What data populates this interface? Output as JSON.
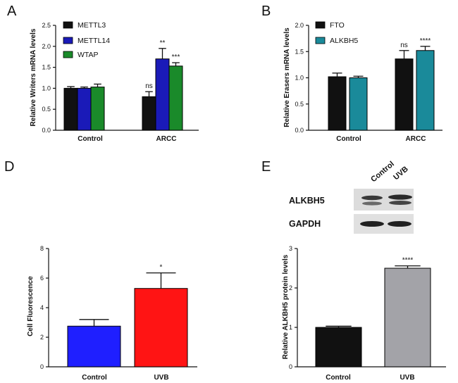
{
  "panels": [
    {
      "id": "A",
      "label": "A",
      "chart_data": {
        "type": "bar",
        "title": "",
        "xlabel": "",
        "ylabel": "Relative Writers mRNA levels",
        "ylim": [
          0,
          2.5
        ],
        "yticks": [
          "0.0",
          "0.5",
          "1.0",
          "1.5",
          "2.0",
          "2.5"
        ],
        "categories": [
          "Control",
          "ARCC"
        ],
        "series": [
          {
            "name": "METTL3",
            "color": "#111111",
            "values": [
              1.0,
              0.8
            ],
            "errors": [
              0.04,
              0.12
            ]
          },
          {
            "name": "METTL14",
            "color": "#1a1ab8",
            "values": [
              1.0,
              1.7
            ],
            "errors": [
              0.03,
              0.25
            ]
          },
          {
            "name": "WTAP",
            "color": "#1a8a2a",
            "values": [
              1.03,
              1.53
            ],
            "errors": [
              0.07,
              0.08
            ]
          }
        ],
        "annotations": [
          [
            "",
            "",
            ""
          ],
          [
            "ns",
            "**",
            "***"
          ]
        ],
        "legend": "top-left",
        "grid": false
      }
    },
    {
      "id": "B",
      "label": "B",
      "chart_data": {
        "type": "bar",
        "title": "",
        "xlabel": "",
        "ylabel": "Relative Erasers mRNA levels",
        "ylim": [
          0,
          2.0
        ],
        "yticks": [
          "0.0",
          "0.5",
          "1.0",
          "1.5",
          "2.0"
        ],
        "categories": [
          "Control",
          "ARCC"
        ],
        "series": [
          {
            "name": "FTO",
            "color": "#111111",
            "values": [
              1.02,
              1.36
            ],
            "errors": [
              0.07,
              0.16
            ]
          },
          {
            "name": "ALKBH5",
            "color": "#1a8a9a",
            "values": [
              1.0,
              1.52
            ],
            "errors": [
              0.03,
              0.08
            ]
          }
        ],
        "annotations": [
          [
            "",
            ""
          ],
          [
            "ns",
            "****"
          ]
        ],
        "legend": "top-left",
        "grid": false
      }
    },
    {
      "id": "D",
      "label": "D",
      "chart_data": {
        "type": "bar",
        "title": "",
        "xlabel": "",
        "ylabel": "Cell Fluorescence",
        "ylim": [
          0,
          8
        ],
        "yticks": [
          "0",
          "2",
          "4",
          "6",
          "8"
        ],
        "categories": [
          "Control",
          "UVB"
        ],
        "values": [
          2.75,
          5.3
        ],
        "errors": [
          0.45,
          1.05
        ],
        "colors": [
          "#1f1fff",
          "#ff1414"
        ],
        "annotations": [
          "",
          "*"
        ],
        "grid": false
      }
    },
    {
      "id": "E",
      "label": "E",
      "chart_data": {
        "type": "bar",
        "title": "",
        "xlabel": "",
        "ylabel": "Relative ALKBH5 protein levels",
        "ylim": [
          0,
          3
        ],
        "yticks": [
          "0",
          "1",
          "2",
          "3"
        ],
        "categories": [
          "Control",
          "UVB"
        ],
        "values": [
          1.0,
          2.5
        ],
        "errors": [
          0.03,
          0.06
        ],
        "colors": [
          "#111111",
          "#a3a3a8"
        ],
        "annotations": [
          "",
          "****"
        ],
        "grid": false
      }
    }
  ],
  "blot": {
    "columns": [
      "Control",
      "UVB"
    ],
    "rows": [
      "ALKBH5",
      "GAPDH"
    ]
  }
}
